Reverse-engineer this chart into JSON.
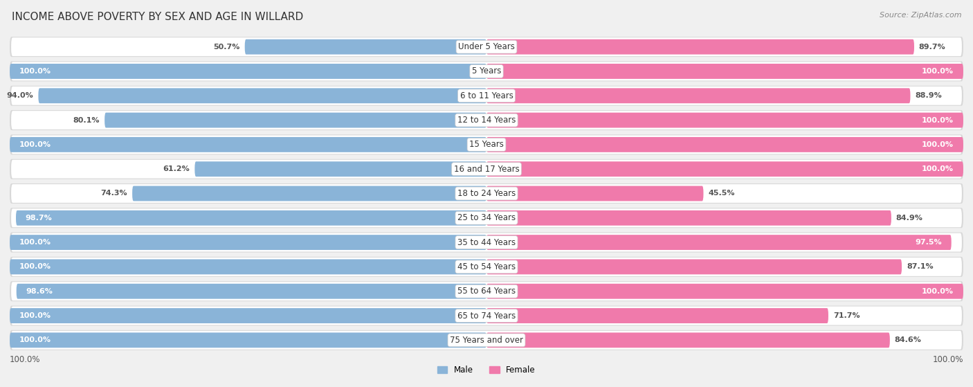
{
  "title": "INCOME ABOVE POVERTY BY SEX AND AGE IN WILLARD",
  "source": "Source: ZipAtlas.com",
  "categories": [
    "Under 5 Years",
    "5 Years",
    "6 to 11 Years",
    "12 to 14 Years",
    "15 Years",
    "16 and 17 Years",
    "18 to 24 Years",
    "25 to 34 Years",
    "35 to 44 Years",
    "45 to 54 Years",
    "55 to 64 Years",
    "65 to 74 Years",
    "75 Years and over"
  ],
  "male_values": [
    50.7,
    100.0,
    94.0,
    80.1,
    100.0,
    61.2,
    74.3,
    98.7,
    100.0,
    100.0,
    98.6,
    100.0,
    100.0
  ],
  "female_values": [
    89.7,
    100.0,
    88.9,
    100.0,
    100.0,
    100.0,
    45.5,
    84.9,
    97.5,
    87.1,
    100.0,
    71.7,
    84.6
  ],
  "male_color": "#8ab4d8",
  "female_color": "#f07aab",
  "bg_color": "#f0f0f0",
  "row_bg": "#e0e0e0",
  "row_inner_bg": "#f8f8f8",
  "title_fontsize": 11,
  "label_fontsize": 8.5,
  "source_fontsize": 8,
  "value_fontsize": 8
}
